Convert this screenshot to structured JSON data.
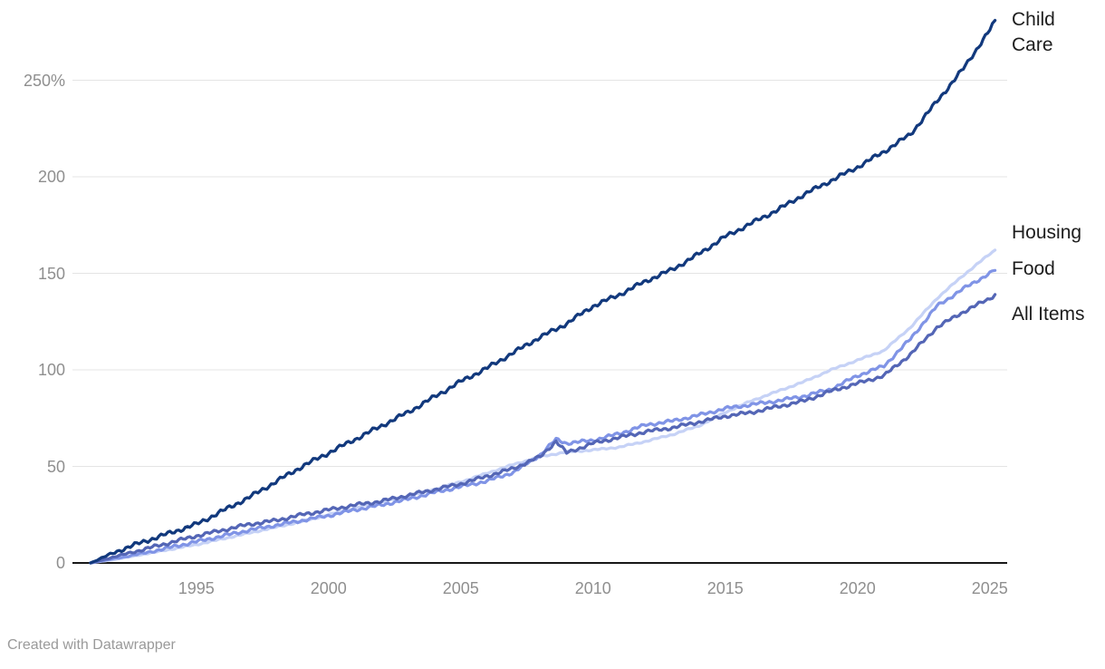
{
  "footer": {
    "attribution": "Created with Datawrapper"
  },
  "chart_data": {
    "type": "line",
    "title": "",
    "xlabel": "",
    "ylabel": "",
    "unit": "%",
    "grid": "horizontal",
    "legend_position": "direct-labels-right",
    "background_color": "#ffffff",
    "axis_line_color": "#181818",
    "gridline_color": "#e4e4e4",
    "tick_label_color": "#8f8f8f",
    "label_color": "#1d1d1d",
    "x_axis": {
      "range": [
        1991,
        2025.5
      ],
      "ticks": [
        1995,
        2000,
        2005,
        2010,
        2015,
        2020,
        2025
      ]
    },
    "y_axis": {
      "range": [
        0,
        285
      ],
      "ticks": [
        {
          "value": 0,
          "label": "0"
        },
        {
          "value": 50,
          "label": "50"
        },
        {
          "value": 100,
          "label": "100"
        },
        {
          "value": 150,
          "label": "150"
        },
        {
          "value": 200,
          "label": "200"
        },
        {
          "value": 250,
          "label": "250%"
        }
      ]
    },
    "x": [
      1991,
      1992,
      1993,
      1994,
      1995,
      1996,
      1997,
      1998,
      1999,
      2000,
      2001,
      2002,
      2003,
      2004,
      2005,
      2006,
      2007,
      2008,
      2008.6,
      2009,
      2010,
      2011,
      2012,
      2013,
      2014,
      2015,
      2016,
      2017,
      2018,
      2019,
      2020,
      2021,
      2022,
      2023,
      2024,
      2025,
      2025.2
    ],
    "series": [
      {
        "id": "child-care",
        "name": "Child Care",
        "color": "#12397d",
        "end_value": 281,
        "values": [
          0,
          6,
          11,
          15.5,
          20,
          27,
          34,
          42,
          50,
          57,
          64,
          71,
          78,
          86,
          94,
          101,
          109,
          117,
          121,
          124,
          133,
          139,
          146,
          152,
          160,
          169,
          176,
          183,
          191,
          198,
          205,
          213,
          222,
          239,
          256,
          276,
          281
        ]
      },
      {
        "id": "housing",
        "name": "Housing",
        "color": "#c6d2f6",
        "end_value": 162,
        "values": [
          0,
          2,
          4.5,
          7,
          9.5,
          12.5,
          15.5,
          18.5,
          21.5,
          25,
          28.5,
          31.5,
          34.5,
          38,
          42,
          46.5,
          51,
          55,
          56.5,
          57.5,
          58.5,
          60,
          63,
          66.5,
          71,
          78,
          84,
          89,
          94,
          100,
          105,
          110,
          122,
          137,
          149,
          160,
          162
        ]
      },
      {
        "id": "food",
        "name": "Food",
        "color": "#8094e6",
        "end_value": 151.5,
        "values": [
          0,
          2.5,
          5,
          8,
          11,
          14,
          17,
          19.5,
          22,
          24.5,
          27.5,
          30,
          33,
          36.5,
          39.5,
          42.5,
          47,
          56,
          64,
          62,
          63.5,
          67,
          71.5,
          73.5,
          76.5,
          80,
          82,
          84,
          86.5,
          90,
          97,
          102,
          116,
          133,
          142,
          150,
          151.5
        ]
      },
      {
        "id": "all-items",
        "name": "All Items",
        "color": "#5466b6",
        "end_value": 139,
        "values": [
          0,
          3.5,
          7,
          10.5,
          14,
          17,
          20,
          22,
          25,
          27.5,
          30,
          32,
          35,
          38,
          41,
          45,
          49,
          55,
          63,
          57,
          62,
          65,
          68,
          70,
          73,
          76,
          78,
          81,
          84,
          89,
          93,
          97,
          108,
          122,
          130,
          137,
          139
        ]
      }
    ]
  }
}
